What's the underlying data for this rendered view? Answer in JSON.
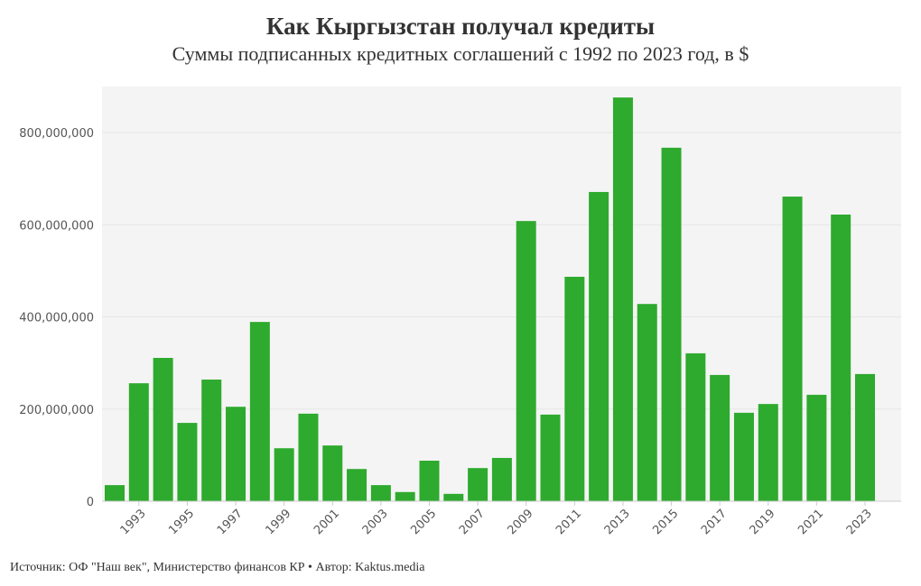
{
  "chart_data": {
    "type": "bar",
    "title": "Как Кыргызстан получал кредиты",
    "subtitle": "Суммы подписанных кредитных соглашений с 1992 по 2023 год, в $",
    "source": "Источник: ОФ \"Наш век\", Министерство финансов КР • Автор: Kaktus.media",
    "categories": [
      1992,
      1993,
      1994,
      1995,
      1996,
      1997,
      1998,
      1999,
      2000,
      2001,
      2002,
      2003,
      2004,
      2005,
      2006,
      2007,
      2008,
      2009,
      2010,
      2011,
      2012,
      2013,
      2014,
      2015,
      2016,
      2017,
      2018,
      2019,
      2020,
      2021,
      2022,
      2023
    ],
    "values": [
      35000000,
      256000000,
      311000000,
      170000000,
      264000000,
      205000000,
      389000000,
      115000000,
      190000000,
      121000000,
      70000000,
      35000000,
      20000000,
      88000000,
      16000000,
      72000000,
      94000000,
      608000000,
      188000000,
      487000000,
      671000000,
      876000000,
      428000000,
      767000000,
      321000000,
      274000000,
      192000000,
      211000000,
      661000000,
      231000000,
      622000000,
      276000000
    ],
    "x_tick_labels": [
      "1993",
      "1995",
      "1997",
      "1999",
      "2001",
      "2003",
      "2005",
      "2007",
      "2009",
      "2011",
      "2013",
      "2015",
      "2017",
      "2019",
      "2021",
      "2023"
    ],
    "y_tick_labels": [
      "0",
      "200,000,000",
      "400,000,000",
      "600,000,000",
      "800,000,000"
    ],
    "y_ticks": [
      0,
      200000000,
      400000000,
      600000000,
      800000000
    ],
    "ylim": [
      0,
      900000000
    ],
    "grid": true,
    "bar_color": "#2eaa2e",
    "plot_background": "#f4f4f4"
  }
}
